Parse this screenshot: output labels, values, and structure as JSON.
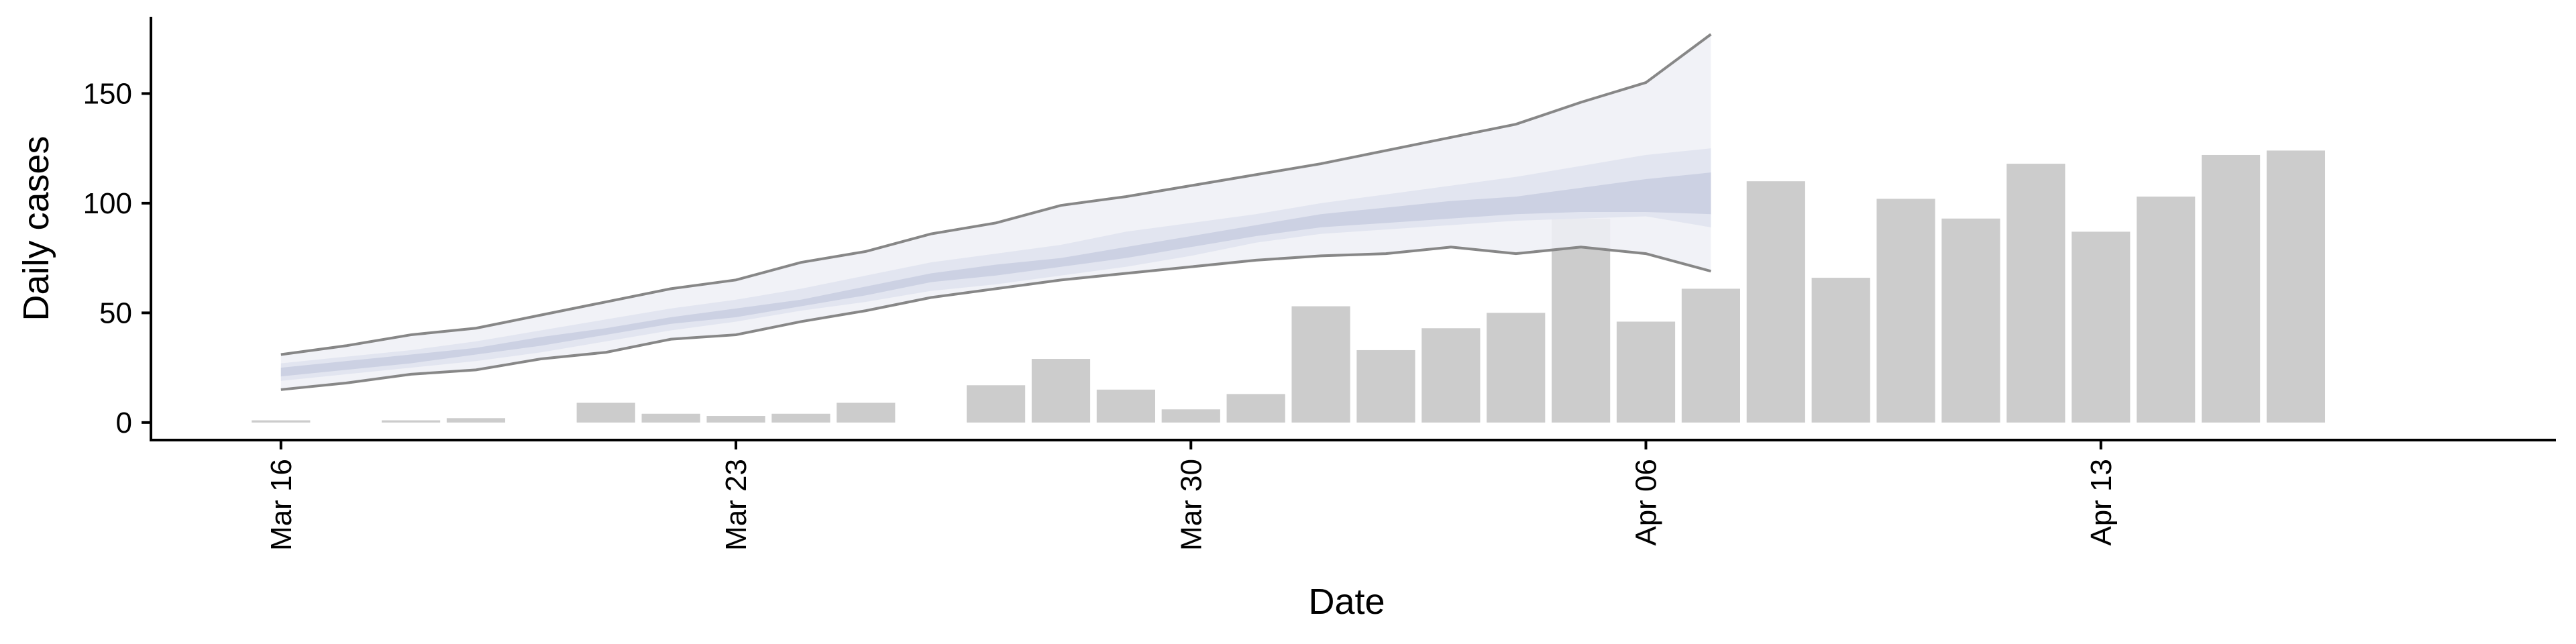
{
  "chart_data": {
    "type": "bar",
    "xlabel": "Date",
    "ylabel": "Daily cases",
    "x_range": [
      "2020-03-14",
      "2020-04-20"
    ],
    "ylim": [
      -8,
      185
    ],
    "grid": false,
    "x_ticks": [
      {
        "date": "2020-03-16",
        "label": "Mar 16"
      },
      {
        "date": "2020-03-23",
        "label": "Mar 23"
      },
      {
        "date": "2020-03-30",
        "label": "Mar 30"
      },
      {
        "date": "2020-04-06",
        "label": "Apr 06"
      },
      {
        "date": "2020-04-13",
        "label": "Apr 13"
      }
    ],
    "y_ticks": [
      {
        "value": 0,
        "label": "0"
      },
      {
        "value": 50,
        "label": "50"
      },
      {
        "value": 100,
        "label": "100"
      },
      {
        "value": 150,
        "label": "150"
      }
    ],
    "bars": {
      "dates": [
        "2020-03-16",
        "2020-03-17",
        "2020-03-18",
        "2020-03-19",
        "2020-03-20",
        "2020-03-21",
        "2020-03-22",
        "2020-03-23",
        "2020-03-24",
        "2020-03-25",
        "2020-03-26",
        "2020-03-27",
        "2020-03-28",
        "2020-03-29",
        "2020-03-30",
        "2020-03-31",
        "2020-04-01",
        "2020-04-02",
        "2020-04-03",
        "2020-04-04",
        "2020-04-05",
        "2020-04-06",
        "2020-04-07",
        "2020-04-08",
        "2020-04-09",
        "2020-04-10",
        "2020-04-11",
        "2020-04-12",
        "2020-04-13",
        "2020-04-14",
        "2020-04-15",
        "2020-04-16",
        "2020-04-17"
      ],
      "values": [
        1,
        0,
        1,
        2,
        0,
        9,
        4,
        3,
        4,
        9,
        0,
        17,
        29,
        15,
        6,
        13,
        53,
        33,
        43,
        50,
        93,
        46,
        61,
        110,
        66,
        102,
        93,
        118,
        87,
        103,
        122,
        124,
        0
      ]
    },
    "forecast": {
      "dates": [
        "2020-03-16",
        "2020-03-17",
        "2020-03-18",
        "2020-03-19",
        "2020-03-20",
        "2020-03-21",
        "2020-03-22",
        "2020-03-23",
        "2020-03-24",
        "2020-03-25",
        "2020-03-26",
        "2020-03-27",
        "2020-03-28",
        "2020-03-29",
        "2020-03-30",
        "2020-03-31",
        "2020-04-01",
        "2020-04-02",
        "2020-04-03",
        "2020-04-04",
        "2020-04-05",
        "2020-04-06",
        "2020-04-07"
      ],
      "outer_upper": [
        31,
        35,
        40,
        43,
        49,
        55,
        61,
        65,
        73,
        78,
        86,
        91,
        99,
        103,
        108,
        113,
        118,
        124,
        130,
        136,
        146,
        155,
        177
      ],
      "outer_lower": [
        15,
        18,
        22,
        24,
        29,
        32,
        38,
        40,
        46,
        51,
        57,
        61,
        65,
        68,
        71,
        74,
        76,
        77,
        80,
        77,
        80,
        77,
        69
      ],
      "inner_upper": [
        27,
        30,
        33,
        37,
        42,
        47,
        52,
        56,
        61,
        67,
        73,
        77,
        81,
        87,
        91,
        95,
        100,
        104,
        108,
        112,
        117,
        122,
        125
      ],
      "inner_lower": [
        19,
        22,
        25,
        28,
        32,
        37,
        42,
        46,
        51,
        55,
        60,
        63,
        67,
        71,
        76,
        82,
        86,
        88,
        90,
        92,
        93,
        94,
        89
      ],
      "middle_upper": [
        25,
        28,
        31,
        34,
        39,
        43,
        48,
        52,
        56,
        62,
        68,
        72,
        75,
        80,
        85,
        90,
        95,
        98,
        101,
        103,
        107,
        111,
        114
      ],
      "middle_lower": [
        21,
        24,
        27,
        31,
        35,
        40,
        45,
        48,
        53,
        58,
        64,
        67,
        71,
        75,
        80,
        85,
        89,
        91,
        93,
        95,
        96,
        96,
        95
      ],
      "forecast_start": "2020-04-06"
    },
    "colors": {
      "bar": "#cccccc",
      "band_outer": "#eef0f6",
      "band_inner": "#dfe3ee",
      "band_middle": "#c8cee0",
      "band_line": "#878787",
      "axis": "#000000"
    }
  }
}
